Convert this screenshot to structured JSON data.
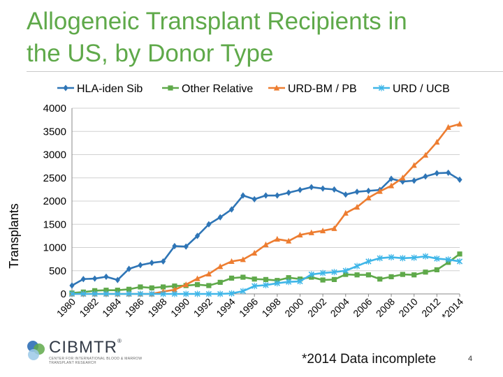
{
  "slide": {
    "title_line1": "Allogeneic Transplant Recipients in",
    "title_line2": "the US, by Donor Type",
    "footnote": "*2014 Data incomplete",
    "page_number": "4",
    "logo": {
      "name": "CIBMTR",
      "reg": "®",
      "subtext": "Center for International Blood & Marrow Transplant Research",
      "colors": [
        "#2f6fb6",
        "#5fa94a",
        "#9bc9e8"
      ]
    }
  },
  "chart_data": {
    "type": "line",
    "title": "",
    "xlabel": "",
    "ylabel": "Transplants",
    "ylim": [
      0,
      4000
    ],
    "yticks": [
      0,
      500,
      1000,
      1500,
      2000,
      2500,
      3000,
      3500,
      4000
    ],
    "years": [
      1980,
      1981,
      1982,
      1983,
      1984,
      1985,
      1986,
      1987,
      1988,
      1989,
      1990,
      1991,
      1992,
      1993,
      1994,
      1995,
      1996,
      1997,
      1998,
      1999,
      2000,
      2001,
      2002,
      2003,
      2004,
      2005,
      2006,
      2007,
      2008,
      2009,
      2010,
      2011,
      2012,
      2013,
      2014
    ],
    "xtick_labels": [
      "1980",
      "1982",
      "1984",
      "1986",
      "1988",
      "1990",
      "1992",
      "1994",
      "1996",
      "1998",
      "2000",
      "2002",
      "2004",
      "2006",
      "2008",
      "2010",
      "2012",
      "*2014"
    ],
    "legend_position": "top",
    "series": [
      {
        "name": "HLA-iden Sib",
        "color": "#2e75b6",
        "marker": "diamond",
        "values": [
          180,
          320,
          330,
          370,
          300,
          540,
          620,
          670,
          700,
          1030,
          1020,
          1250,
          1500,
          1650,
          1820,
          2120,
          2040,
          2120,
          2120,
          2180,
          2240,
          2300,
          2270,
          2250,
          2140,
          2200,
          2220,
          2240,
          2480,
          2420,
          2440,
          2530,
          2600,
          2610,
          2460
        ]
      },
      {
        "name": "Other Relative",
        "color": "#5fa94a",
        "marker": "square",
        "values": [
          20,
          40,
          70,
          80,
          80,
          100,
          150,
          130,
          150,
          170,
          180,
          200,
          180,
          250,
          340,
          360,
          320,
          310,
          290,
          350,
          320,
          360,
          300,
          310,
          420,
          410,
          410,
          320,
          370,
          420,
          410,
          470,
          520,
          680,
          860
        ]
      },
      {
        "name": "URD-BM / PB",
        "color": "#ed7d31",
        "marker": "triangle",
        "values": [
          0,
          0,
          0,
          0,
          0,
          0,
          0,
          0,
          50,
          90,
          200,
          330,
          430,
          590,
          700,
          740,
          880,
          1060,
          1180,
          1140,
          1270,
          1320,
          1360,
          1410,
          1740,
          1870,
          2070,
          2210,
          2330,
          2500,
          2770,
          2990,
          3270,
          3590,
          3660
        ]
      },
      {
        "name": "URD / UCB",
        "color": "#3fb6e8",
        "marker": "star",
        "values": [
          0,
          0,
          0,
          0,
          0,
          0,
          0,
          0,
          0,
          0,
          0,
          0,
          0,
          0,
          10,
          60,
          170,
          190,
          230,
          260,
          270,
          420,
          450,
          470,
          500,
          600,
          700,
          770,
          790,
          770,
          780,
          810,
          760,
          740,
          700
        ]
      }
    ]
  }
}
